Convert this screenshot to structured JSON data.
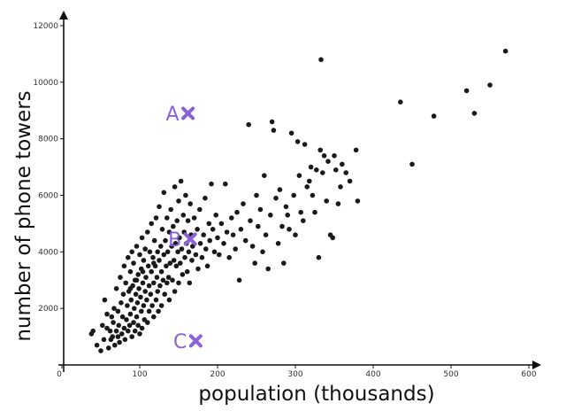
{
  "chart_data": {
    "type": "scatter",
    "title": "",
    "xlabel": "population (thousands)",
    "ylabel": "number of phone towers",
    "xlim": [
      0,
      620
    ],
    "ylim": [
      0,
      12600
    ],
    "grid": false,
    "x_ticks": [
      0,
      100,
      200,
      300,
      400,
      500,
      600
    ],
    "y_ticks": [
      2000,
      4000,
      6000,
      8000,
      10000,
      12000
    ],
    "x_tick_labels": [
      "0",
      "100",
      "200",
      "300",
      "400",
      "500",
      "600"
    ],
    "y_tick_labels": [
      "2000",
      "4000",
      "6000",
      "8000",
      "10000",
      "12000"
    ],
    "point_color": "#1a1a1a",
    "marker_color": "#8a62d6",
    "markers": [
      {
        "label": "A",
        "x": 162,
        "y": 8900
      },
      {
        "label": "B",
        "x": 165,
        "y": 4450
      },
      {
        "label": "C",
        "x": 172,
        "y": 850
      }
    ],
    "points": [
      [
        38,
        1100
      ],
      [
        45,
        700
      ],
      [
        50,
        500
      ],
      [
        52,
        1400
      ],
      [
        54,
        900
      ],
      [
        55,
        2300
      ],
      [
        58,
        1800
      ],
      [
        60,
        600
      ],
      [
        62,
        1200
      ],
      [
        63,
        900
      ],
      [
        65,
        1000
      ],
      [
        66,
        1500
      ],
      [
        67,
        2000
      ],
      [
        68,
        700
      ],
      [
        70,
        1200
      ],
      [
        70,
        2700
      ],
      [
        72,
        1900
      ],
      [
        73,
        1400
      ],
      [
        74,
        800
      ],
      [
        75,
        3100
      ],
      [
        76,
        2200
      ],
      [
        77,
        1100
      ],
      [
        78,
        1700
      ],
      [
        79,
        2500
      ],
      [
        80,
        1300
      ],
      [
        80,
        3500
      ],
      [
        81,
        900
      ],
      [
        82,
        2900
      ],
      [
        83,
        1600
      ],
      [
        84,
        2100
      ],
      [
        85,
        1200
      ],
      [
        85,
        3800
      ],
      [
        86,
        2600
      ],
      [
        87,
        1400
      ],
      [
        88,
        1800
      ],
      [
        88,
        3300
      ],
      [
        89,
        2300
      ],
      [
        90,
        1000
      ],
      [
        90,
        4000
      ],
      [
        91,
        2800
      ],
      [
        92,
        1500
      ],
      [
        92,
        3600
      ],
      [
        93,
        2000
      ],
      [
        94,
        1200
      ],
      [
        94,
        3000
      ],
      [
        95,
        2500
      ],
      [
        96,
        1700
      ],
      [
        96,
        4200
      ],
      [
        97,
        2200
      ],
      [
        98,
        1400
      ],
      [
        98,
        3200
      ],
      [
        99,
        2700
      ],
      [
        100,
        1100
      ],
      [
        100,
        3900
      ],
      [
        101,
        2400
      ],
      [
        102,
        1900
      ],
      [
        102,
        3400
      ],
      [
        103,
        1300
      ],
      [
        103,
        4500
      ],
      [
        104,
        2900
      ],
      [
        105,
        2100
      ],
      [
        105,
        3700
      ],
      [
        106,
        1600
      ],
      [
        107,
        2600
      ],
      [
        107,
        4100
      ],
      [
        108,
        3100
      ],
      [
        109,
        2300
      ],
      [
        110,
        1500
      ],
      [
        110,
        4700
      ],
      [
        111,
        3500
      ],
      [
        112,
        2800
      ],
      [
        112,
        1900
      ],
      [
        113,
        4000
      ],
      [
        114,
        2500
      ],
      [
        115,
        3300
      ],
      [
        115,
        5000
      ],
      [
        116,
        2100
      ],
      [
        117,
        3800
      ],
      [
        118,
        1700
      ],
      [
        118,
        2900
      ],
      [
        119,
        4400
      ],
      [
        120,
        3500
      ],
      [
        121,
        2300
      ],
      [
        121,
        5200
      ],
      [
        122,
        3100
      ],
      [
        123,
        2600
      ],
      [
        123,
        4000
      ],
      [
        124,
        1900
      ],
      [
        125,
        3700
      ],
      [
        125,
        5600
      ],
      [
        126,
        2800
      ],
      [
        127,
        4200
      ],
      [
        128,
        3300
      ],
      [
        128,
        2100
      ],
      [
        129,
        4800
      ],
      [
        130,
        3000
      ],
      [
        131,
        3900
      ],
      [
        131,
        6100
      ],
      [
        132,
        2500
      ],
      [
        133,
        4400
      ],
      [
        134,
        3500
      ],
      [
        135,
        2900
      ],
      [
        135,
        5200
      ],
      [
        136,
        4000
      ],
      [
        137,
        3100
      ],
      [
        138,
        4700
      ],
      [
        138,
        2300
      ],
      [
        139,
        3600
      ],
      [
        140,
        5500
      ],
      [
        141,
        4200
      ],
      [
        142,
        3000
      ],
      [
        143,
        4900
      ],
      [
        144,
        3700
      ],
      [
        145,
        2600
      ],
      [
        145,
        6300
      ],
      [
        146,
        4300
      ],
      [
        147,
        3500
      ],
      [
        148,
        5100
      ],
      [
        149,
        4000
      ],
      [
        150,
        2900
      ],
      [
        150,
        5800
      ],
      [
        151,
        4500
      ],
      [
        152,
        3600
      ],
      [
        153,
        6500
      ],
      [
        154,
        4100
      ],
      [
        155,
        3200
      ],
      [
        156,
        5300
      ],
      [
        157,
        4700
      ],
      [
        158,
        3800
      ],
      [
        159,
        6000
      ],
      [
        160,
        4300
      ],
      [
        161,
        3300
      ],
      [
        162,
        5100
      ],
      [
        163,
        4000
      ],
      [
        164,
        2900
      ],
      [
        165,
        5700
      ],
      [
        166,
        4600
      ],
      [
        167,
        3700
      ],
      [
        168,
        4200
      ],
      [
        170,
        5200
      ],
      [
        172,
        3900
      ],
      [
        174,
        4800
      ],
      [
        175,
        3400
      ],
      [
        177,
        5500
      ],
      [
        178,
        4300
      ],
      [
        180,
        3800
      ],
      [
        182,
        4600
      ],
      [
        184,
        5900
      ],
      [
        185,
        4100
      ],
      [
        187,
        3500
      ],
      [
        189,
        5000
      ],
      [
        190,
        4400
      ],
      [
        192,
        6400
      ],
      [
        194,
        4800
      ],
      [
        196,
        4000
      ],
      [
        198,
        5300
      ],
      [
        200,
        4500
      ],
      [
        202,
        3900
      ],
      [
        205,
        5000
      ],
      [
        208,
        4300
      ],
      [
        210,
        6400
      ],
      [
        212,
        4700
      ],
      [
        215,
        3800
      ],
      [
        218,
        5200
      ],
      [
        220,
        4600
      ],
      [
        223,
        4100
      ],
      [
        225,
        5400
      ],
      [
        228,
        3000
      ],
      [
        230,
        4800
      ],
      [
        233,
        5700
      ],
      [
        236,
        4400
      ],
      [
        240,
        8500
      ],
      [
        242,
        5100
      ],
      [
        245,
        4200
      ],
      [
        248,
        3600
      ],
      [
        250,
        6000
      ],
      [
        252,
        4900
      ],
      [
        255,
        5500
      ],
      [
        258,
        4000
      ],
      [
        260,
        6700
      ],
      [
        262,
        4600
      ],
      [
        265,
        3400
      ],
      [
        268,
        5300
      ],
      [
        270,
        8600
      ],
      [
        272,
        8300
      ],
      [
        275,
        5900
      ],
      [
        278,
        4300
      ],
      [
        280,
        6200
      ],
      [
        283,
        4900
      ],
      [
        285,
        3600
      ],
      [
        288,
        5600
      ],
      [
        290,
        5300
      ],
      [
        292,
        4800
      ],
      [
        295,
        8200
      ],
      [
        298,
        6000
      ],
      [
        300,
        4600
      ],
      [
        303,
        7900
      ],
      [
        305,
        6700
      ],
      [
        307,
        5400
      ],
      [
        310,
        5100
      ],
      [
        312,
        7800
      ],
      [
        315,
        6300
      ],
      [
        318,
        6500
      ],
      [
        320,
        7000
      ],
      [
        322,
        6000
      ],
      [
        325,
        5400
      ],
      [
        327,
        6900
      ],
      [
        330,
        3800
      ],
      [
        332,
        7600
      ],
      [
        333,
        10800
      ],
      [
        335,
        6800
      ],
      [
        337,
        7400
      ],
      [
        340,
        5800
      ],
      [
        342,
        7200
      ],
      [
        345,
        4600
      ],
      [
        348,
        4500
      ],
      [
        350,
        7400
      ],
      [
        352,
        6900
      ],
      [
        355,
        5700
      ],
      [
        358,
        6300
      ],
      [
        360,
        7100
      ],
      [
        365,
        6800
      ],
      [
        370,
        6500
      ],
      [
        378,
        7600
      ],
      [
        380,
        5800
      ],
      [
        435,
        9300
      ],
      [
        450,
        7100
      ],
      [
        478,
        8800
      ],
      [
        520,
        9700
      ],
      [
        530,
        8900
      ],
      [
        550,
        9900
      ],
      [
        570,
        11100
      ],
      [
        40,
        1200
      ],
      [
        58,
        1300
      ],
      [
        64,
        1700
      ],
      [
        72,
        1000
      ],
      [
        88,
        2700
      ],
      [
        96,
        3000
      ],
      [
        104,
        3300
      ],
      [
        118,
        3600
      ]
    ]
  }
}
